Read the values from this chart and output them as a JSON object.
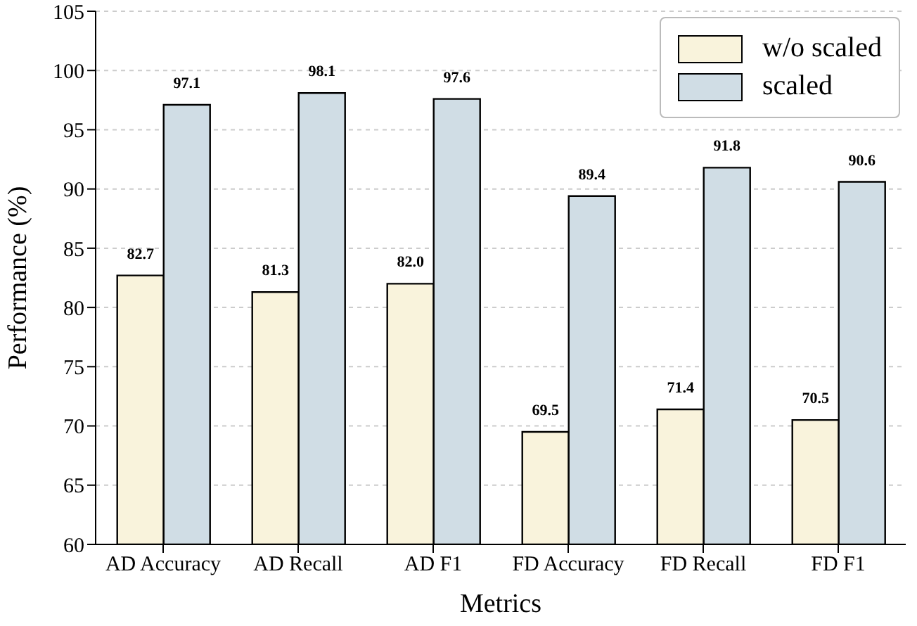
{
  "chart_data": {
    "type": "bar",
    "xlabel": "Metrics",
    "ylabel": "Performance (%)",
    "categories": [
      "AD Accuracy",
      "AD Recall",
      "AD F1",
      "FD Accuracy",
      "FD Recall",
      "FD F1"
    ],
    "series": [
      {
        "name": "w/o scaled",
        "color": "#f9f3dc",
        "values": [
          82.7,
          81.3,
          82.0,
          69.5,
          71.4,
          70.5
        ],
        "value_labels": [
          "82.7",
          "81.3",
          "82.0",
          "69.5",
          "71.4",
          "70.5"
        ]
      },
      {
        "name": "scaled",
        "color": "#d0dde5",
        "values": [
          97.1,
          98.1,
          97.6,
          89.4,
          91.8,
          90.6
        ],
        "value_labels": [
          "97.1",
          "98.1",
          "97.6",
          "89.4",
          "91.8",
          "90.6"
        ]
      }
    ],
    "ylim": [
      60,
      105
    ],
    "yticks": [
      60,
      65,
      70,
      75,
      80,
      85,
      90,
      95,
      100,
      105
    ],
    "grid": "y",
    "legend": "top right"
  }
}
